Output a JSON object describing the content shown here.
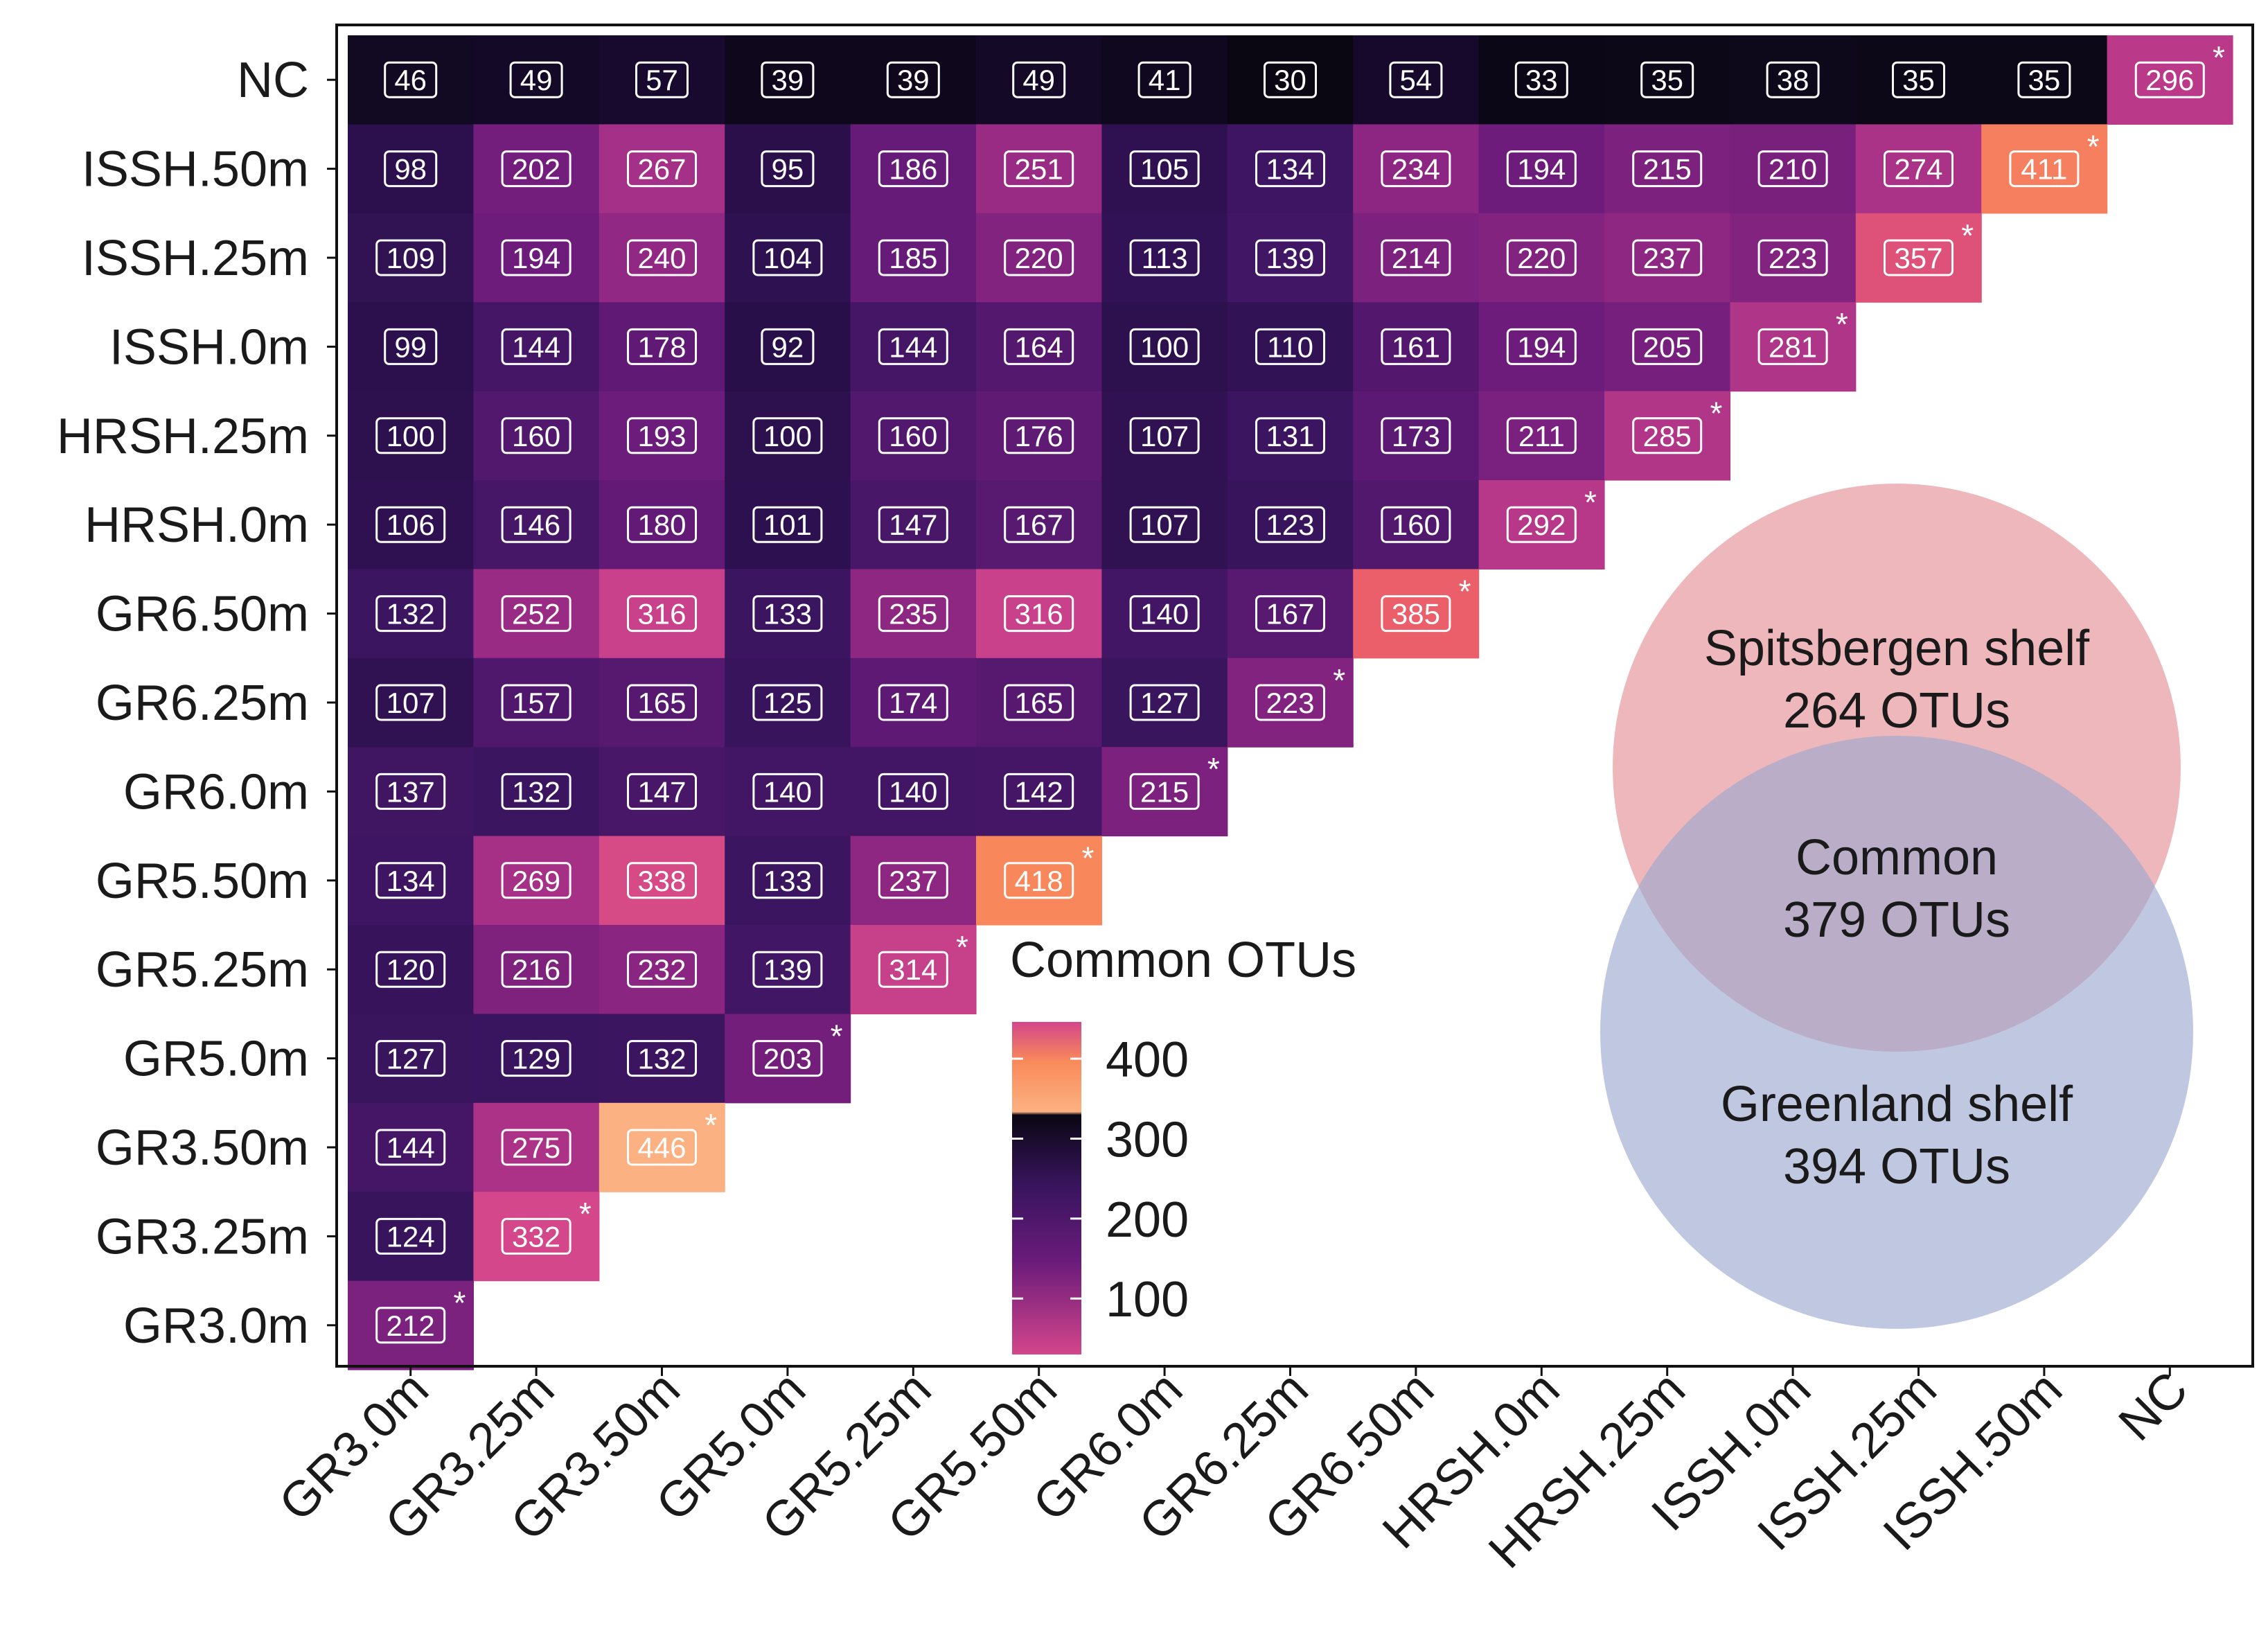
{
  "chart_data": {
    "type": "heatmap",
    "title": "",
    "labels": [
      "GR3.0m",
      "GR3.25m",
      "GR3.50m",
      "GR5.0m",
      "GR5.25m",
      "GR5.50m",
      "GR6.0m",
      "GR6.25m",
      "GR6.50m",
      "HRSH.0m",
      "HRSH.25m",
      "ISSH.0m",
      "ISSH.25m",
      "ISSH.50m",
      "NC"
    ],
    "rows": [
      {
        "name": "NC",
        "values": [
          46,
          49,
          57,
          39,
          39,
          49,
          41,
          30,
          54,
          33,
          35,
          38,
          35,
          35,
          296
        ]
      },
      {
        "name": "ISSH.50m",
        "values": [
          98,
          202,
          267,
          95,
          186,
          251,
          105,
          134,
          234,
          194,
          215,
          210,
          274,
          411
        ]
      },
      {
        "name": "ISSH.25m",
        "values": [
          109,
          194,
          240,
          104,
          185,
          220,
          113,
          139,
          214,
          220,
          237,
          223,
          357
        ]
      },
      {
        "name": "ISSH.0m",
        "values": [
          99,
          144,
          178,
          92,
          144,
          164,
          100,
          110,
          161,
          194,
          205,
          281
        ]
      },
      {
        "name": "HRSH.25m",
        "values": [
          100,
          160,
          193,
          100,
          160,
          176,
          107,
          131,
          173,
          211,
          285
        ]
      },
      {
        "name": "HRSH.0m",
        "values": [
          106,
          146,
          180,
          101,
          147,
          167,
          107,
          123,
          160,
          292
        ]
      },
      {
        "name": "GR6.50m",
        "values": [
          132,
          252,
          316,
          133,
          235,
          316,
          140,
          167,
          385
        ]
      },
      {
        "name": "GR6.25m",
        "values": [
          107,
          157,
          165,
          125,
          174,
          165,
          127,
          223
        ]
      },
      {
        "name": "GR6.0m",
        "values": [
          137,
          132,
          147,
          140,
          140,
          142,
          215
        ]
      },
      {
        "name": "GR5.50m",
        "values": [
          134,
          269,
          338,
          133,
          237,
          418
        ]
      },
      {
        "name": "GR5.25m",
        "values": [
          120,
          216,
          232,
          139,
          314
        ]
      },
      {
        "name": "GR5.0m",
        "values": [
          127,
          129,
          132,
          203
        ]
      },
      {
        "name": "GR3.50m",
        "values": [
          144,
          275,
          446
        ]
      },
      {
        "name": "GR3.25m",
        "values": [
          124,
          332
        ]
      },
      {
        "name": "GR3.0m",
        "values": [
          212
        ]
      }
    ],
    "diagonal_marker": "*",
    "legend": {
      "title": "Common OTUs",
      "ticks": [
        400,
        300,
        200,
        100
      ],
      "range": [
        30,
        446
      ],
      "placement": "center"
    },
    "venn": {
      "top_label": "Spitsbergen shelf",
      "top_count": "264 OTUs",
      "overlap_label": "Common",
      "overlap_count": "379 OTUs",
      "bottom_label": "Greenland shelf",
      "bottom_count": "394 OTUs",
      "top_color": "#e9a3a8",
      "bottom_color": "#9aa6cf"
    },
    "colors": {
      "min": "#d3468b",
      "mid_low": "#6a1b7a",
      "dark": "#1f0b3c",
      "black": "#0a0713",
      "orange": "#f98a5a",
      "peach": "#fbb181"
    }
  }
}
